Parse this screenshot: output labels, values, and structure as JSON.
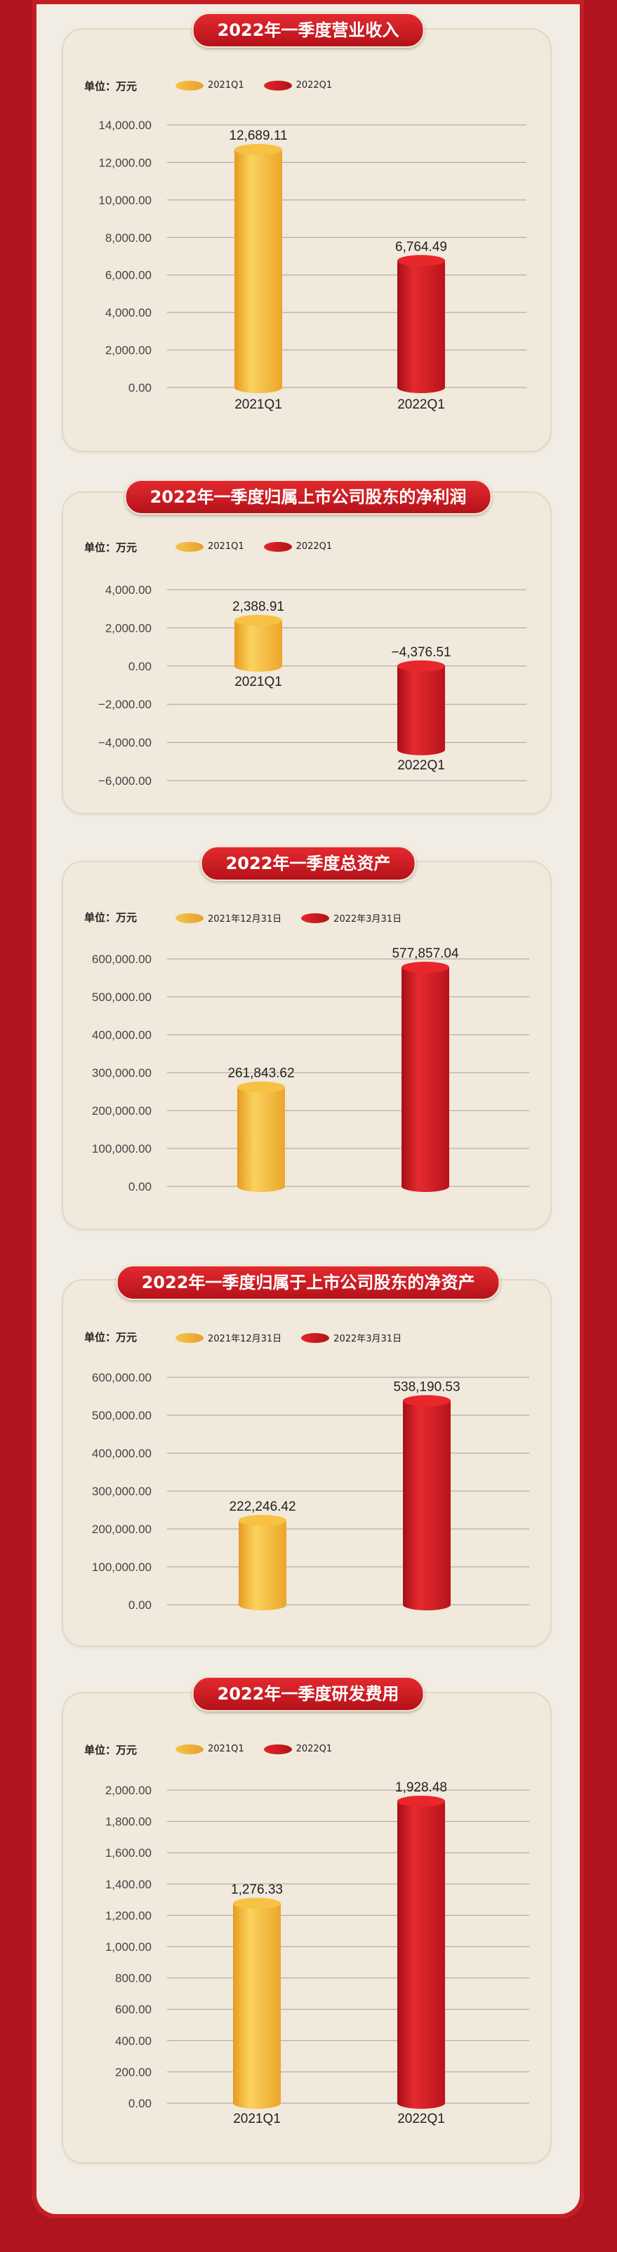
{
  "colors": {
    "gold": "#f0b33a",
    "red": "#cf1b22",
    "background": "#b0141d"
  },
  "charts": [
    {
      "title": "2022年一季度营业收入",
      "unit_label": "单位：万元",
      "legend": [
        "2021Q1",
        "2022Q1"
      ]
    },
    {
      "title": "2022年一季度归属上市公司股东的净利润",
      "unit_label": "单位：万元",
      "legend": [
        "2021Q1",
        "2022Q1"
      ]
    },
    {
      "title": "2022年一季度总资产",
      "unit_label": "单位：万元",
      "legend": [
        "2021年12月31日",
        "2022年3月31日"
      ]
    },
    {
      "title": "2022年一季度归属于上市公司股东的净资产",
      "unit_label": "单位：万元",
      "legend": [
        "2021年12月31日",
        "2022年3月31日"
      ]
    },
    {
      "title": "2022年一季度研发费用",
      "unit_label": "单位：万元",
      "legend": [
        "2021Q1",
        "2022Q1"
      ]
    }
  ],
  "chart_data": [
    {
      "type": "bar",
      "title": "2022年一季度营业收入",
      "categories": [
        "2021Q1",
        "2022Q1"
      ],
      "category_labels": [
        "2021Q1",
        "2022Q1"
      ],
      "values": [
        12689.11,
        6764.49
      ],
      "value_labels": [
        "12,689.11",
        "6,764.49"
      ],
      "yticks": [
        "14,000.00",
        "12,000.00",
        "10,000.00",
        "8,000.00",
        "6,000.00",
        "4,000.00",
        "2,000.00",
        "0.00"
      ],
      "ylim": [
        0,
        14000
      ],
      "bar_colors": [
        "gold",
        "red"
      ],
      "grid": true
    },
    {
      "type": "bar",
      "title": "2022年一季度归属上市公司股东的净利润",
      "categories": [
        "2021Q1",
        "2022Q1"
      ],
      "category_labels": [
        "2021Q1",
        "2022Q1"
      ],
      "values": [
        2388.91,
        -4376.51
      ],
      "value_labels": [
        "2,388.91",
        "−4,376.51"
      ],
      "yticks": [
        "4,000.00",
        "2,000.00",
        "0.00",
        "−2,000.00",
        "−4,000.00",
        "−6,000.00"
      ],
      "ylim": [
        -6000,
        4000
      ],
      "bar_colors": [
        "gold",
        "red"
      ],
      "grid": true
    },
    {
      "type": "bar",
      "title": "2022年一季度总资产",
      "categories": [
        "2021年12月31日",
        "2022年3月31日"
      ],
      "category_labels": [],
      "values": [
        261843.62,
        577857.04
      ],
      "value_labels": [
        "261,843.62",
        "577,857.04"
      ],
      "yticks": [
        "600,000.00",
        "500,000.00",
        "400,000.00",
        "300,000.00",
        "200,000.00",
        "100,000.00",
        "0.00"
      ],
      "ylim": [
        0,
        600000
      ],
      "bar_colors": [
        "gold",
        "red"
      ],
      "grid": true
    },
    {
      "type": "bar",
      "title": "2022年一季度归属于上市公司股东的净资产",
      "categories": [
        "2021年12月31日",
        "2022年3月31日"
      ],
      "category_labels": [],
      "values": [
        222246.42,
        538190.53
      ],
      "value_labels": [
        "222,246.42",
        "538,190.53"
      ],
      "yticks": [
        "600,000.00",
        "500,000.00",
        "400,000.00",
        "300,000.00",
        "200,000.00",
        "100,000.00",
        "0.00"
      ],
      "ylim": [
        0,
        600000
      ],
      "bar_colors": [
        "gold",
        "red"
      ],
      "grid": true
    },
    {
      "type": "bar",
      "title": "2022年一季度研发费用",
      "categories": [
        "2021Q1",
        "2022Q1"
      ],
      "category_labels": [
        "2021Q1",
        "2022Q1"
      ],
      "values": [
        1276.33,
        1928.48
      ],
      "value_labels": [
        "1,276.33",
        "1,928.48"
      ],
      "yticks": [
        "2,000.00",
        "1,800.00",
        "1,600.00",
        "1,400.00",
        "1,200.00",
        "1,000.00",
        "800.00",
        "600.00",
        "400.00",
        "200.00",
        "0.00"
      ],
      "ylim": [
        0,
        2000
      ],
      "bar_colors": [
        "gold",
        "red"
      ],
      "grid": true
    }
  ]
}
